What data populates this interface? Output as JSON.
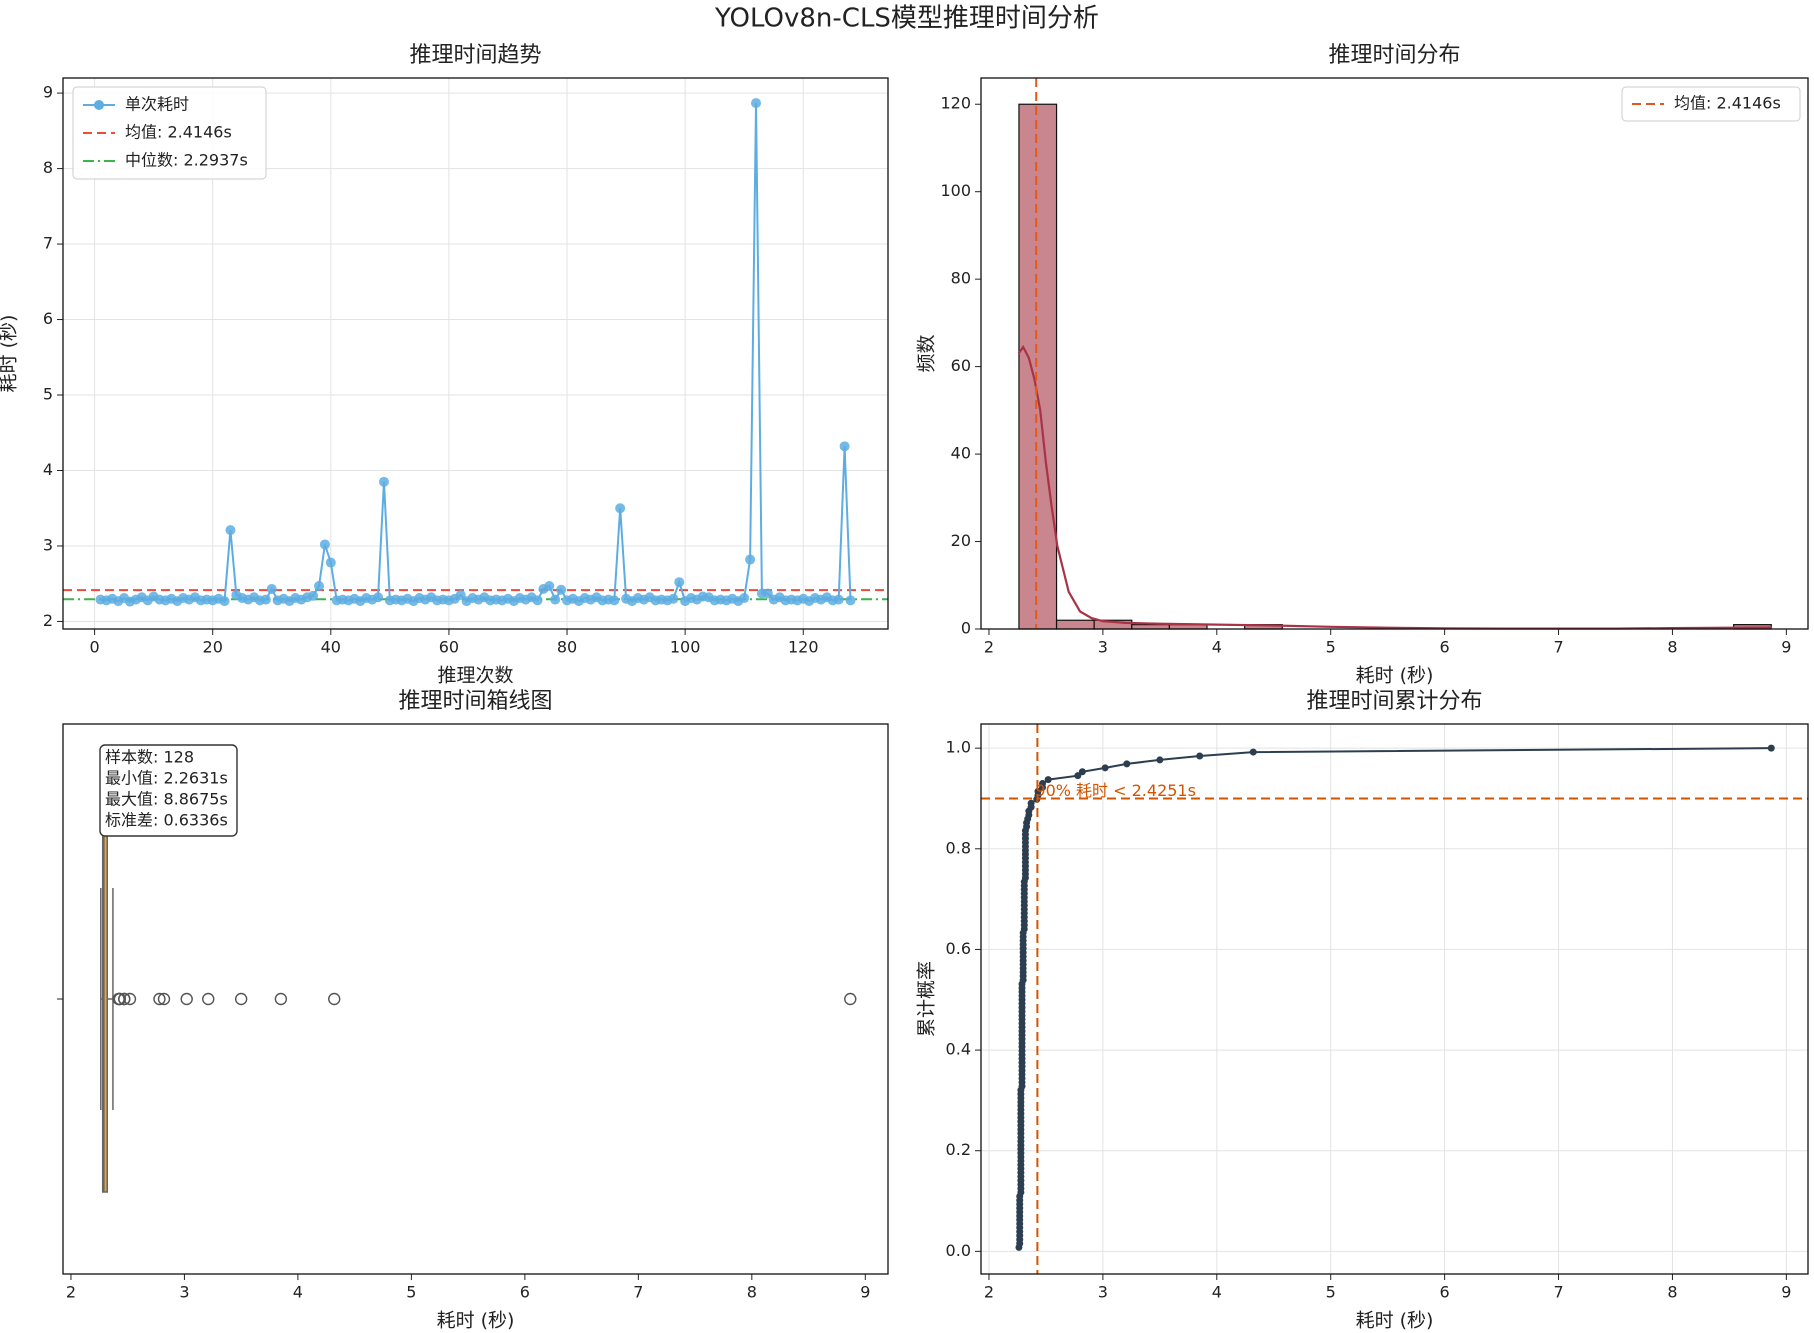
{
  "title": "YOLOv8n-CLS模型推理时间分析",
  "chart_data": [
    {
      "type": "line",
      "title": "推理时间趋势",
      "xlabel": "推理次数",
      "ylabel": "耗时 (秒)",
      "xlim": [
        -5.35,
        134.35
      ],
      "xticks": [
        0,
        20,
        40,
        60,
        80,
        100,
        120
      ],
      "ylim": [
        1.9,
        9.2
      ],
      "yticks": [
        2,
        3,
        4,
        5,
        6,
        7,
        8,
        9
      ],
      "grid": true,
      "legend": "upper left",
      "x": [
        1,
        2,
        3,
        4,
        5,
        6,
        7,
        8,
        9,
        10,
        11,
        12,
        13,
        14,
        15,
        16,
        17,
        18,
        19,
        20,
        21,
        22,
        23,
        24,
        25,
        26,
        27,
        28,
        29,
        30,
        31,
        32,
        33,
        34,
        35,
        36,
        37,
        38,
        39,
        40,
        41,
        42,
        43,
        44,
        45,
        46,
        47,
        48,
        49,
        50,
        51,
        52,
        53,
        54,
        55,
        56,
        57,
        58,
        59,
        60,
        61,
        62,
        63,
        64,
        65,
        66,
        67,
        68,
        69,
        70,
        71,
        72,
        73,
        74,
        75,
        76,
        77,
        78,
        79,
        80,
        81,
        82,
        83,
        84,
        85,
        86,
        87,
        88,
        89,
        90,
        91,
        92,
        93,
        94,
        95,
        96,
        97,
        98,
        99,
        100,
        101,
        102,
        103,
        104,
        105,
        106,
        107,
        108,
        109,
        110,
        111,
        112,
        113,
        114,
        115,
        116,
        117,
        118,
        119,
        120,
        121,
        122,
        123,
        124,
        125,
        126,
        127,
        128
      ],
      "series": [
        {
          "name": "单次耗时",
          "color": "#5dade2",
          "values": [
            2.29,
            2.28,
            2.3,
            2.27,
            2.31,
            2.2631,
            2.29,
            2.32,
            2.28,
            2.33,
            2.29,
            2.28,
            2.3,
            2.27,
            2.31,
            2.29,
            2.32,
            2.28,
            2.29,
            2.28,
            2.3,
            2.27,
            3.21,
            2.35,
            2.31,
            2.29,
            2.32,
            2.28,
            2.29,
            2.43,
            2.28,
            2.3,
            2.27,
            2.31,
            2.29,
            2.32,
            2.34,
            2.47,
            3.02,
            2.78,
            2.28,
            2.29,
            2.28,
            2.3,
            2.27,
            2.31,
            2.29,
            2.32,
            3.85,
            2.28,
            2.29,
            2.28,
            2.3,
            2.27,
            2.31,
            2.29,
            2.32,
            2.28,
            2.29,
            2.28,
            2.3,
            2.35,
            2.27,
            2.31,
            2.29,
            2.32,
            2.28,
            2.29,
            2.28,
            2.3,
            2.27,
            2.31,
            2.29,
            2.32,
            2.28,
            2.43,
            2.47,
            2.29,
            2.42,
            2.28,
            2.3,
            2.27,
            2.31,
            2.29,
            2.32,
            2.28,
            2.29,
            2.28,
            3.5,
            2.3,
            2.27,
            2.31,
            2.29,
            2.32,
            2.28,
            2.29,
            2.28,
            2.3,
            2.52,
            2.27,
            2.31,
            2.29,
            2.33,
            2.32,
            2.28,
            2.29,
            2.28,
            2.3,
            2.27,
            2.31,
            2.82,
            8.8675,
            2.37,
            2.37,
            2.29,
            2.32,
            2.28,
            2.29,
            2.28,
            2.3,
            2.27,
            2.31,
            2.29,
            2.32,
            2.28,
            2.29,
            4.32,
            2.28
          ]
        }
      ],
      "hlines": [
        {
          "name": "均值: 2.4146s",
          "value": 2.4146,
          "color": "#e74c3c",
          "style": "dashed"
        },
        {
          "name": "中位数: 2.2937s",
          "value": 2.2937,
          "color": "#3cb44b",
          "style": "dashdot"
        }
      ]
    },
    {
      "type": "histogram",
      "title": "推理时间分布",
      "xlabel": "耗时 (秒)",
      "ylabel": "频数",
      "xlim": [
        1.93,
        9.19
      ],
      "xticks": [
        2,
        3,
        4,
        5,
        6,
        7,
        8,
        9
      ],
      "ylim": [
        0,
        126
      ],
      "yticks": [
        0,
        20,
        40,
        60,
        80,
        100,
        120
      ],
      "grid": false,
      "legend": "upper right",
      "color": "#c9868e",
      "bins": [
        2.2631,
        2.5933,
        2.9235,
        3.2538,
        3.584,
        3.9142,
        4.2444,
        4.5746,
        4.9049,
        5.2351,
        5.5653,
        5.8955,
        6.2257,
        6.556,
        6.8862,
        7.2164,
        7.5466,
        7.8768,
        8.2071,
        8.5373,
        8.8675
      ],
      "values": [
        120,
        2,
        2,
        1,
        1,
        0,
        1,
        0,
        0,
        0,
        0,
        0,
        0,
        0,
        0,
        0,
        0,
        0,
        0,
        1
      ],
      "kde": {
        "color": "#a93246",
        "x": [
          2.26,
          2.3,
          2.35,
          2.4,
          2.45,
          2.5,
          2.55,
          2.6,
          2.7,
          2.8,
          2.9,
          3.0,
          3.2,
          3.5,
          4.0,
          4.5,
          5.0,
          5.5,
          6,
          6.5,
          7,
          7.5,
          8,
          8.5,
          8.87
        ],
        "values": [
          63,
          64.5,
          62,
          57,
          50,
          38,
          28,
          19,
          8.5,
          4,
          2.5,
          1.8,
          1.4,
          1.2,
          1.0,
          0.8,
          0.5,
          0.3,
          0.15,
          0.1,
          0.1,
          0.1,
          0.2,
          0.3,
          0.35
        ]
      },
      "vlines": [
        {
          "name": "均值: 2.4146s",
          "value": 2.4146,
          "color": "#e05a1e",
          "style": "dashed"
        }
      ]
    },
    {
      "type": "box",
      "title": "推理时间箱线图",
      "xlabel": "耗时 (秒)",
      "xlim": [
        1.93,
        9.2
      ],
      "xticks": [
        2,
        3,
        4,
        5,
        6,
        7,
        8,
        9
      ],
      "grid": false,
      "color": "#e6a23c",
      "box": {
        "whislo": 2.2631,
        "q1": 2.28,
        "med": 2.29,
        "q3": 2.32,
        "whishi": 2.37,
        "fliers": [
          2.42,
          2.43,
          2.43,
          2.47,
          2.47,
          2.52,
          2.78,
          2.82,
          3.02,
          3.21,
          3.5,
          3.85,
          4.32,
          8.8675
        ]
      },
      "annotation": [
        "样本数: 128",
        "最小值: 2.2631s",
        "最大值: 8.8675s",
        "标准差: 0.6336s"
      ]
    },
    {
      "type": "ecdf",
      "title": "推理时间累计分布",
      "xlabel": "耗时 (秒)",
      "ylabel": "累计概率",
      "xlim": [
        1.93,
        9.19
      ],
      "xticks": [
        2,
        3,
        4,
        5,
        6,
        7,
        8,
        9
      ],
      "ylim": [
        -0.045,
        1.048
      ],
      "yticks": [
        {
          "value": 0,
          "label": "0.0"
        },
        0.2,
        0.4,
        0.6,
        0.8,
        {
          "value": 1,
          "label": "1.0"
        }
      ],
      "grid": true,
      "color": "#2c3e50",
      "x": [
        2.2631,
        2.27,
        2.27,
        2.27,
        2.27,
        2.27,
        2.27,
        2.27,
        2.27,
        2.27,
        2.27,
        2.27,
        2.27,
        2.27,
        2.28,
        2.28,
        2.28,
        2.28,
        2.28,
        2.28,
        2.28,
        2.28,
        2.28,
        2.28,
        2.28,
        2.28,
        2.28,
        2.28,
        2.28,
        2.28,
        2.28,
        2.28,
        2.28,
        2.28,
        2.28,
        2.28,
        2.28,
        2.28,
        2.28,
        2.28,
        2.28,
        2.29,
        2.29,
        2.29,
        2.29,
        2.29,
        2.29,
        2.29,
        2.29,
        2.29,
        2.29,
        2.29,
        2.29,
        2.29,
        2.29,
        2.29,
        2.29,
        2.29,
        2.29,
        2.29,
        2.29,
        2.29,
        2.29,
        2.29,
        2.29,
        2.29,
        2.29,
        2.29,
        2.3,
        2.3,
        2.3,
        2.3,
        2.3,
        2.3,
        2.3,
        2.3,
        2.3,
        2.3,
        2.3,
        2.3,
        2.3,
        2.31,
        2.31,
        2.31,
        2.31,
        2.31,
        2.31,
        2.31,
        2.31,
        2.31,
        2.31,
        2.31,
        2.31,
        2.31,
        2.32,
        2.32,
        2.32,
        2.32,
        2.32,
        2.32,
        2.32,
        2.32,
        2.32,
        2.32,
        2.32,
        2.32,
        2.32,
        2.33,
        2.33,
        2.34,
        2.35,
        2.35,
        2.37,
        2.37,
        2.42,
        2.43,
        2.43,
        2.47,
        2.47,
        2.52,
        2.78,
        2.82,
        3.02,
        3.21,
        3.5,
        3.85,
        4.32,
        8.8675
      ],
      "values": [
        0.0078,
        0.0156,
        0.0234,
        0.0313,
        0.0391,
        0.0469,
        0.0547,
        0.0625,
        0.0703,
        0.0781,
        0.0859,
        0.0938,
        0.1016,
        0.1094,
        0.1172,
        0.125,
        0.1328,
        0.1406,
        0.1484,
        0.1563,
        0.1641,
        0.1719,
        0.1797,
        0.1875,
        0.1953,
        0.2031,
        0.2109,
        0.2188,
        0.2266,
        0.2344,
        0.2422,
        0.25,
        0.2578,
        0.2656,
        0.2734,
        0.2813,
        0.2891,
        0.2969,
        0.3047,
        0.3125,
        0.3203,
        0.3281,
        0.3359,
        0.3438,
        0.3516,
        0.3594,
        0.3672,
        0.375,
        0.3828,
        0.3906,
        0.3984,
        0.4063,
        0.4141,
        0.4219,
        0.4297,
        0.4375,
        0.4453,
        0.4531,
        0.4609,
        0.4688,
        0.4766,
        0.4844,
        0.4922,
        0.5,
        0.5078,
        0.5156,
        0.5234,
        0.5313,
        0.5391,
        0.5469,
        0.5547,
        0.5625,
        0.5703,
        0.5781,
        0.5859,
        0.5938,
        0.6016,
        0.6094,
        0.6172,
        0.625,
        0.6328,
        0.6406,
        0.6484,
        0.6563,
        0.6641,
        0.6719,
        0.6797,
        0.6875,
        0.6953,
        0.7031,
        0.7109,
        0.7188,
        0.7266,
        0.7344,
        0.7422,
        0.75,
        0.7578,
        0.7656,
        0.7734,
        0.7813,
        0.7891,
        0.7969,
        0.8047,
        0.8125,
        0.8203,
        0.8281,
        0.8359,
        0.8438,
        0.8516,
        0.8594,
        0.8672,
        0.875,
        0.8828,
        0.8906,
        0.8984,
        0.9063,
        0.9141,
        0.9219,
        0.9297,
        0.9375,
        0.9453,
        0.9531,
        0.9609,
        0.9688,
        0.9766,
        0.9844,
        0.9922,
        1
      ],
      "hline": 0.9,
      "vline": 2.4251,
      "refcolor": "#d35400",
      "annotation": "90% 耗时 < 2.4251s"
    }
  ]
}
